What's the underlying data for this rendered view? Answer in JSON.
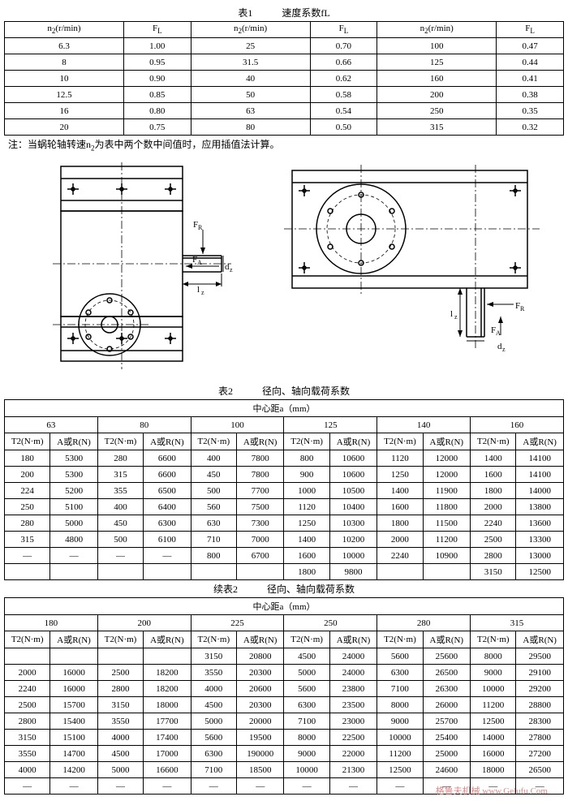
{
  "table1": {
    "title": "表1　　　速度系数fL",
    "headers": [
      "n<sub>2</sub>(r/min)",
      "F<sub>L</sub>",
      "n<sub>2</sub>(r/min)",
      "F<sub>L</sub>",
      "n<sub>2</sub>(r/min)",
      "F<sub>L</sub>"
    ],
    "rows": [
      [
        "6.3",
        "1.00",
        "25",
        "0.70",
        "100",
        "0.47"
      ],
      [
        "8",
        "0.95",
        "31.5",
        "0.66",
        "125",
        "0.44"
      ],
      [
        "10",
        "0.90",
        "40",
        "0.62",
        "160",
        "0.41"
      ],
      [
        "12.5",
        "0.85",
        "50",
        "0.58",
        "200",
        "0.38"
      ],
      [
        "16",
        "0.80",
        "63",
        "0.54",
        "250",
        "0.35"
      ],
      [
        "20",
        "0.75",
        "80",
        "0.50",
        "315",
        "0.32"
      ]
    ]
  },
  "note": "注：当蜗轮轴转速n<sub>2</sub>为表中两个数中间值时，应用插值法计算。",
  "table2": {
    "title": "表2　　　径向、轴向载荷系数",
    "center_header": "中心距a（mm）",
    "dist_values": [
      "63",
      "80",
      "100",
      "125",
      "140",
      "160"
    ],
    "sub_headers": [
      "T2(N·m)",
      "A或R(N)"
    ],
    "rows": [
      [
        "180",
        "5300",
        "280",
        "6600",
        "400",
        "7800",
        "800",
        "10600",
        "1120",
        "12000",
        "1400",
        "14100"
      ],
      [
        "200",
        "5300",
        "315",
        "6600",
        "450",
        "7800",
        "900",
        "10600",
        "1250",
        "12000",
        "1600",
        "14100"
      ],
      [
        "224",
        "5200",
        "355",
        "6500",
        "500",
        "7700",
        "1000",
        "10500",
        "1400",
        "11900",
        "1800",
        "14000"
      ],
      [
        "250",
        "5100",
        "400",
        "6400",
        "560",
        "7500",
        "1120",
        "10400",
        "1600",
        "11800",
        "2000",
        "13800"
      ],
      [
        "280",
        "5000",
        "450",
        "6300",
        "630",
        "7300",
        "1250",
        "10300",
        "1800",
        "11500",
        "2240",
        "13600"
      ],
      [
        "315",
        "4800",
        "500",
        "6100",
        "710",
        "7000",
        "1400",
        "10200",
        "2000",
        "11200",
        "2500",
        "13300"
      ],
      [
        "—",
        "—",
        "—",
        "—",
        "800",
        "6700",
        "1600",
        "10000",
        "2240",
        "10900",
        "2800",
        "13000"
      ],
      [
        "",
        "",
        "",
        "",
        "",
        "",
        "1800",
        "9800",
        "",
        "",
        "3150",
        "12500"
      ]
    ]
  },
  "table3": {
    "title": "续表2　　　径向、轴向载荷系数",
    "center_header": "中心距a（mm）",
    "dist_values": [
      "180",
      "200",
      "225",
      "250",
      "280",
      "315"
    ],
    "sub_headers": [
      "T2(N·m)",
      "A或R(N)"
    ],
    "rows": [
      [
        "",
        "",
        "",
        "",
        "3150",
        "20800",
        "4500",
        "24000",
        "5600",
        "25600",
        "8000",
        "29500"
      ],
      [
        "2000",
        "16000",
        "2500",
        "18200",
        "3550",
        "20300",
        "5000",
        "24000",
        "6300",
        "26500",
        "9000",
        "29100"
      ],
      [
        "2240",
        "16000",
        "2800",
        "18200",
        "4000",
        "20600",
        "5600",
        "23800",
        "7100",
        "26300",
        "10000",
        "29200"
      ],
      [
        "2500",
        "15700",
        "3150",
        "18000",
        "4500",
        "20300",
        "6300",
        "23500",
        "8000",
        "26000",
        "11200",
        "28800"
      ],
      [
        "2800",
        "15400",
        "3550",
        "17700",
        "5000",
        "20000",
        "7100",
        "23000",
        "9000",
        "25700",
        "12500",
        "28300"
      ],
      [
        "3150",
        "15100",
        "4000",
        "17400",
        "5600",
        "19500",
        "8000",
        "22500",
        "10000",
        "25400",
        "14000",
        "27800"
      ],
      [
        "3550",
        "14700",
        "4500",
        "17000",
        "6300",
        "190000",
        "9000",
        "22000",
        "11200",
        "25000",
        "16000",
        "27200"
      ],
      [
        "4000",
        "14200",
        "5000",
        "16600",
        "7100",
        "18500",
        "10000",
        "21300",
        "12500",
        "24600",
        "18000",
        "26500"
      ],
      [
        "—",
        "—",
        "—",
        "—",
        "—",
        "—",
        "—",
        "—",
        "—",
        "—",
        "—",
        "—"
      ]
    ]
  },
  "watermark": "格鲁夫机械 www.Gelufu.Com"
}
